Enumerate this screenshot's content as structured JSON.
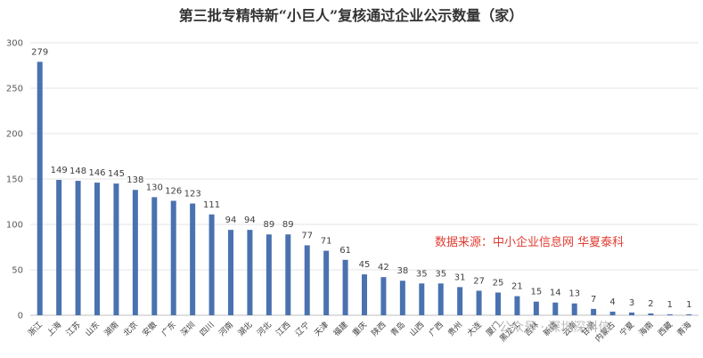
{
  "chart_data": {
    "type": "bar",
    "title": "第三批专精特新“小巨人”复核通过企业公示数量（家）",
    "categories": [
      "浙江",
      "上海",
      "江苏",
      "山东",
      "湖南",
      "北京",
      "安徽",
      "广东",
      "深圳",
      "四川",
      "河南",
      "湖北",
      "河北",
      "江西",
      "辽宁",
      "天津",
      "福建",
      "重庆",
      "陕西",
      "青岛",
      "山西",
      "广西",
      "贵州",
      "大连",
      "厦门",
      "黑龙江",
      "吉林",
      "新疆",
      "云南",
      "甘肃",
      "内蒙古",
      "宁夏",
      "海南",
      "西藏",
      "青海"
    ],
    "values": [
      279,
      149,
      148,
      146,
      145,
      138,
      130,
      126,
      123,
      111,
      94,
      94,
      89,
      89,
      77,
      71,
      61,
      45,
      42,
      38,
      35,
      35,
      31,
      27,
      25,
      21,
      15,
      14,
      13,
      7,
      4,
      3,
      2,
      1,
      1
    ],
    "ylim": [
      0,
      300
    ],
    "yticks": [
      0,
      50,
      100,
      150,
      200,
      250,
      300
    ],
    "grid": true,
    "bar_color": "#4a72b0",
    "annotation": "数据来源：中小企业信息网 华夏泰科",
    "annotation_color": "#e03c31"
  },
  "watermark": {
    "text": "公众号 · 深圳深科信"
  }
}
